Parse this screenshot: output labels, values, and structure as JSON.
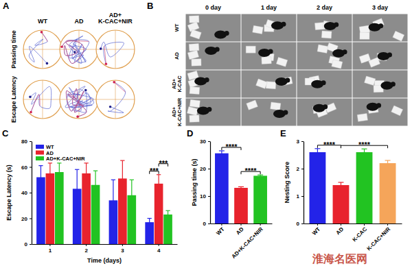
{
  "panel_a": {
    "label": "A",
    "columns": [
      "WT",
      "AD",
      "AD+ K-CAC+NIR"
    ],
    "rows": [
      "Passing time",
      "Escape Latency"
    ]
  },
  "panel_b": {
    "label": "B",
    "columns": [
      "0 day",
      "1 day",
      "2 day",
      "3 day"
    ],
    "rows": [
      "WT",
      "AD",
      "AD+ K-CAC",
      "AD+ K-CAC+NIR"
    ]
  },
  "chart_data": [
    {
      "title": "C",
      "type": "bar",
      "categories": [
        1,
        2,
        3,
        4
      ],
      "x_label": "Time (days)",
      "y_label": "Escape Latency (s)",
      "ylim": [
        0,
        80
      ],
      "yticks": [
        0,
        20,
        40,
        60,
        80
      ],
      "legend": "upper left",
      "series": [
        {
          "name": "WT",
          "color": "#2323e8",
          "values": [
            52,
            43,
            34,
            17
          ],
          "errors": [
            9,
            15,
            16,
            3
          ]
        },
        {
          "name": "AD",
          "color": "#e8232d",
          "values": [
            55,
            55,
            51,
            47
          ],
          "errors": [
            8,
            8,
            14,
            7
          ]
        },
        {
          "name": "AD+K-CAC+NIR",
          "color": "#22c322",
          "values": [
            56,
            46,
            38,
            23
          ],
          "errors": [
            7,
            11,
            12,
            3
          ]
        }
      ],
      "annotations": [
        {
          "text": "***",
          "category": 4,
          "between": [
            "WT",
            "AD"
          ]
        },
        {
          "text": "***",
          "category": 4,
          "between": [
            "AD",
            "AD+K-CAC+NIR"
          ]
        }
      ]
    },
    {
      "title": "D",
      "type": "bar",
      "categories": [
        "WT",
        "AD",
        "AD+K-CAC+NIR"
      ],
      "y_label": "Passing time (s)",
      "ylim": [
        0,
        30
      ],
      "yticks": [
        0,
        10,
        20,
        30
      ],
      "values": [
        25.6,
        13,
        17.4
      ],
      "errors": [
        0.9,
        0.4,
        0.3
      ],
      "colors": [
        "#2323e8",
        "#e8232d",
        "#22c322"
      ],
      "annotations": [
        {
          "text": "****",
          "between": [
            "WT",
            "AD"
          ]
        },
        {
          "text": "****",
          "between": [
            "AD",
            "AD+K-CAC+NIR"
          ]
        }
      ]
    },
    {
      "title": "E",
      "type": "bar",
      "categories": [
        "WT",
        "AD",
        "K-CAC",
        "K-CAC+NIR"
      ],
      "y_label": "Nesting Score",
      "ylim": [
        0,
        3
      ],
      "yticks": [
        0,
        1,
        2,
        3
      ],
      "values": [
        2.6,
        1.4,
        2.6,
        2.2
      ],
      "errors": [
        0.13,
        0.1,
        0.12,
        0.1
      ],
      "colors": [
        "#2323e8",
        "#e8232d",
        "#22c322",
        "#f5a55a"
      ],
      "annotations": [
        {
          "text": "****",
          "between": [
            "WT",
            "AD"
          ]
        },
        {
          "text": "****",
          "between": [
            "AD",
            "K-CAC+NIR"
          ]
        }
      ]
    }
  ],
  "watermark": "淮海名医网"
}
